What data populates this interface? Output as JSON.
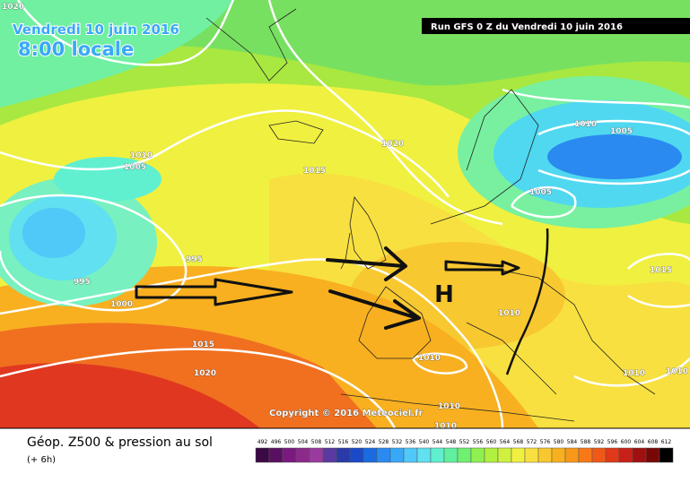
{
  "header": {
    "date": "Vendredi 10 juin 2016",
    "time": "8:00 locale",
    "run": "Run GFS 0 Z du Vendredi 10 juin 2016"
  },
  "map": {
    "isobar_labels": [
      "1020",
      "1010",
      "1005",
      "1020",
      "1015",
      "995",
      "995",
      "1000",
      "1015",
      "1020",
      "1010",
      "1010",
      "1010",
      "1005",
      "1010",
      "1005",
      "1015",
      "1010",
      "1010",
      "1010"
    ],
    "high": "H",
    "copyright": "Copyright © 2016 Meteociel.fr"
  },
  "legend": {
    "title": "Géop. Z500 & pression au sol",
    "lead": "(+ 6h)",
    "scale_labels": [
      492,
      496,
      500,
      504,
      508,
      512,
      516,
      520,
      524,
      528,
      532,
      536,
      540,
      544,
      548,
      552,
      556,
      560,
      564,
      568,
      572,
      576,
      580,
      584,
      588,
      592,
      596,
      600,
      604,
      608,
      612
    ],
    "scale_colors": [
      "#3b0a45",
      "#5a1060",
      "#7a1a80",
      "#8c2a8c",
      "#9a3aa0",
      "#5a3aa0",
      "#2a3aa8",
      "#1a4ac8",
      "#1a6ae0",
      "#2a8af0",
      "#3aa8f8",
      "#50c8f8",
      "#60e0f0",
      "#60f0d0",
      "#60f0a0",
      "#70f070",
      "#90f050",
      "#b0f040",
      "#d0f040",
      "#f0f040",
      "#f8e040",
      "#f8c830",
      "#f8b020",
      "#f89818",
      "#f87818",
      "#f05818",
      "#e03818",
      "#c82018",
      "#a01010",
      "#780808",
      "#000000"
    ]
  }
}
